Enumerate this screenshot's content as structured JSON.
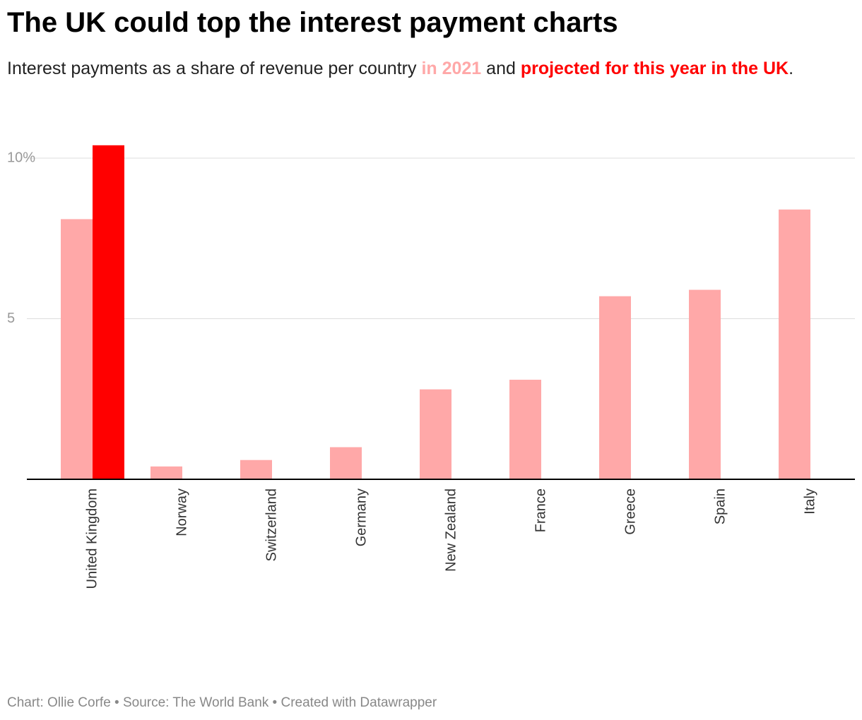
{
  "chart_data": {
    "type": "bar",
    "title": "The UK could top the interest payment charts",
    "subtitle": [
      "Interest payments as a share of revenue per country",
      "and",
      "."
    ],
    "categories": [
      "United Kingdom",
      "Norway",
      "Switzerland",
      "Germany",
      "New Zealand",
      "France",
      "Greece",
      "Spain",
      "Italy"
    ],
    "series": [
      {
        "name": "in 2021",
        "color": "#ffa8a8",
        "values": [
          8.1,
          0.4,
          0.6,
          1.0,
          2.8,
          3.1,
          5.7,
          5.9,
          8.4
        ]
      },
      {
        "name": "projected for this year in the UK",
        "color": "#ff0000",
        "values": [
          10.4,
          null,
          null,
          null,
          null,
          null,
          null,
          null,
          null
        ]
      }
    ],
    "ylim": [
      0,
      10
    ],
    "yticks": [
      5,
      {
        "value": 10,
        "label": "10%"
      }
    ],
    "grid": true,
    "source": "Chart: Ollie Corfe • Source: The World Bank • Created with Datawrapper"
  }
}
